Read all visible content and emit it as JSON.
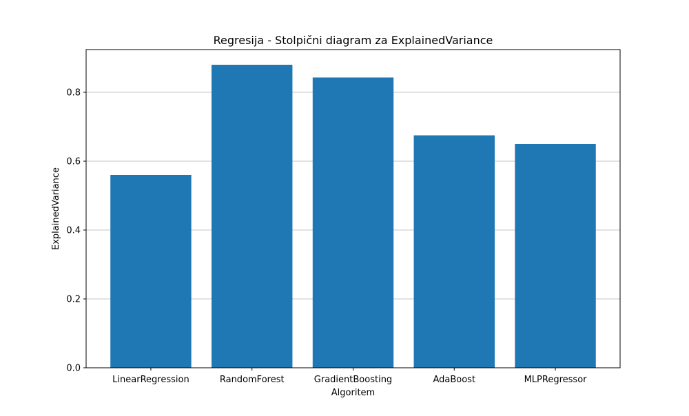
{
  "chart_data": {
    "type": "bar",
    "title": "Regresija - Stolpični diagram za ExplainedVariance",
    "xlabel": "Algoritem",
    "ylabel": "ExplainedVariance",
    "categories": [
      "LinearRegression",
      "RandomForest",
      "GradientBoosting",
      "AdaBoost",
      "MLPRegressor"
    ],
    "values": [
      0.56,
      0.88,
      0.843,
      0.675,
      0.65
    ],
    "ylim": [
      0,
      0.924
    ],
    "yticks": [
      0.0,
      0.2,
      0.4,
      0.6,
      0.8
    ],
    "ytick_labels": [
      "0.0",
      "0.2",
      "0.4",
      "0.6",
      "0.8"
    ],
    "grid": "horizontal",
    "legend": "none",
    "colors": {
      "bar": "#1f77b4",
      "grid": "#b0b0b0",
      "axes": "#000000"
    }
  }
}
